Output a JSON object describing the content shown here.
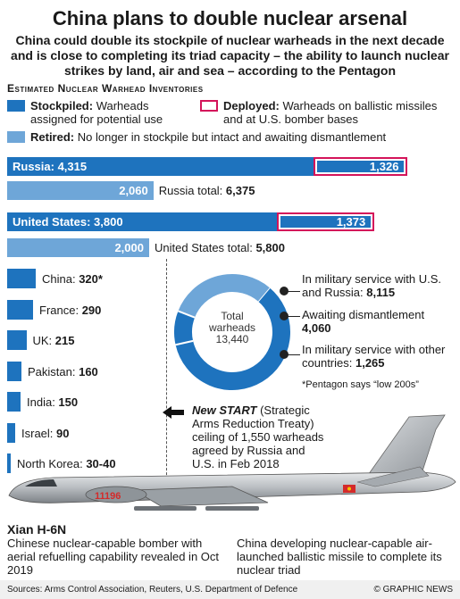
{
  "title": "China plans to double nuclear arsenal",
  "subtitle": "China could double its stockpile of nuclear warheads in the next decade and is close to completing its triad capacity – the ability to launch nuclear strikes by land, air and sea – according to the Pentagon",
  "section_title": "Estimated Nuclear Warhead Inventories",
  "legend": {
    "stockpiled_bold": "Stockpiled:",
    "stockpiled_text": "Warheads assigned for potential use",
    "deployed_bold": "Deployed:",
    "deployed_text": "Warheads on ballistic missiles and at U.S. bomber bases",
    "retired_bold": "Retired:",
    "retired_text": "No longer in stockpile but intact and awaiting dismantlement"
  },
  "colors": {
    "stockpiled": "#1e73be",
    "retired": "#6ea6d8",
    "deployed_border": "#d4145a"
  },
  "chart_data": [
    {
      "type": "bar",
      "orientation": "horizontal",
      "stacked": true,
      "categories": [
        "Russia",
        "United States"
      ],
      "series": [
        {
          "name": "Stockpiled",
          "values": [
            4315,
            3800
          ]
        },
        {
          "name": "Deployed",
          "values": [
            1326,
            1373
          ]
        },
        {
          "name": "Retired",
          "values": [
            2060,
            2000
          ]
        }
      ],
      "labels": {
        "russia_stock": "Russia: 4,315",
        "russia_dep": "1,326",
        "russia_ret": "2,060",
        "russia_total_prefix": "Russia total: ",
        "russia_total": "6,375",
        "us_stock": "United States: 3,800",
        "us_dep": "1,373",
        "us_ret": "2,000",
        "us_total_prefix": "United States total: ",
        "us_total": "5,800"
      }
    },
    {
      "type": "bar",
      "orientation": "horizontal",
      "categories": [
        "China",
        "France",
        "UK",
        "Pakistan",
        "India",
        "Israel",
        "North Korea"
      ],
      "values": [
        320,
        290,
        215,
        160,
        150,
        90,
        35
      ],
      "value_labels": [
        "320*",
        "290",
        "215",
        "160",
        "150",
        "90",
        "30-40"
      ]
    },
    {
      "type": "pie",
      "donut": true,
      "center_label": "Total warheads",
      "center_value": "13,440",
      "slices": [
        {
          "name": "In military service with U.S. and Russia",
          "value": 8115,
          "label": "8,115"
        },
        {
          "name": "Awaiting dismantlement",
          "value": 4060,
          "label": "4,060"
        },
        {
          "name": "In military service with other countries",
          "value": 1265,
          "label": "1,265"
        }
      ]
    }
  ],
  "donut_labels": {
    "a_text": "In military service with U.S. and Russia: ",
    "a_val": "8,115",
    "b_text": "Awaiting dismantlement",
    "b_val": "4,060",
    "c_text": "In military service with other countries: ",
    "c_val": "1,265"
  },
  "footnote": "*Pentagon says “low 200s”",
  "new_start": {
    "name": "New START",
    "text1": " (Strategic Arms Reduction Treaty) ceiling of 1,550 warheads agreed by Russia and U.S. in Feb 2018"
  },
  "aircraft": {
    "name": "Xian H-6N",
    "tail_number": "11196",
    "caption": "Chinese nuclear-capable bomber with aerial refuelling capability revealed in Oct 2019",
    "missile_caption": "China developing nuclear-capable air-launched ballistic missile to complete its nuclear triad"
  },
  "footer": {
    "sources": "Sources: Arms Control Association, Reuters, U.S. Department of Defence",
    "credit": "© GRAPHIC NEWS"
  },
  "watermark": "GRAPHIC NEWS"
}
